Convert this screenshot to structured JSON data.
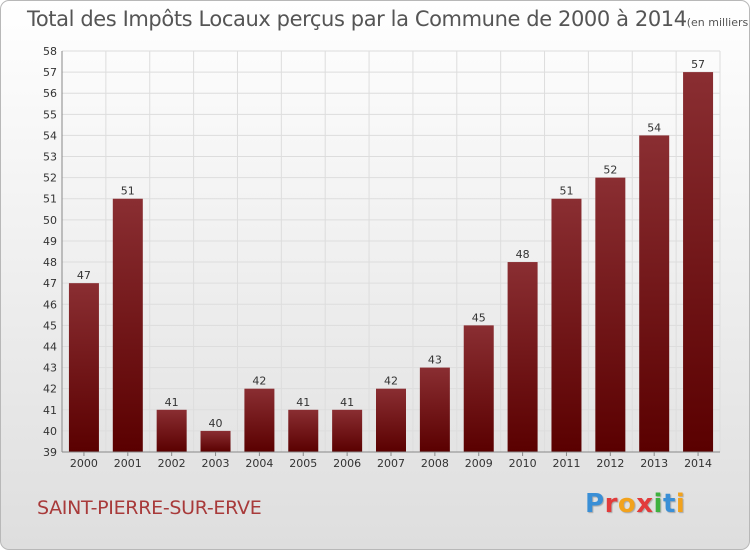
{
  "title": "Total des Impôts Locaux perçus par la Commune de 2000 à 2014",
  "title_unit": "(en milliers d'€)",
  "commune": "SAINT-PIERRE-SUR-ERVE",
  "logo": {
    "text": "Proxiti",
    "letters": [
      "P",
      "r",
      "o",
      "x",
      "i",
      "t",
      "i"
    ],
    "colors": [
      "#3a8fd6",
      "#e23b3b",
      "#f2a21c",
      "#e23b3b",
      "#3fb13f",
      "#3a8fd6",
      "#f2a21c"
    ]
  },
  "colors": {
    "bar_top": "#8a2e32",
    "bar_bottom": "#5a0000",
    "grid": "#dddddd",
    "axis_text": "#333333"
  },
  "chart_data": {
    "type": "bar",
    "title": "Total des Impôts Locaux perçus par la Commune de 2000 à 2014",
    "xlabel": "",
    "ylabel": "",
    "ylim": [
      39,
      58
    ],
    "yticks": [
      39,
      40,
      41,
      42,
      43,
      44,
      45,
      46,
      47,
      48,
      49,
      50,
      51,
      52,
      53,
      54,
      55,
      56,
      57,
      58
    ],
    "grid": true,
    "categories": [
      "2000",
      "2001",
      "2002",
      "2003",
      "2004",
      "2005",
      "2006",
      "2007",
      "2008",
      "2009",
      "2010",
      "2011",
      "2012",
      "2013",
      "2014"
    ],
    "values": [
      47,
      51,
      41,
      40,
      42,
      41,
      41,
      42,
      43,
      45,
      48,
      51,
      52,
      54,
      57
    ]
  }
}
